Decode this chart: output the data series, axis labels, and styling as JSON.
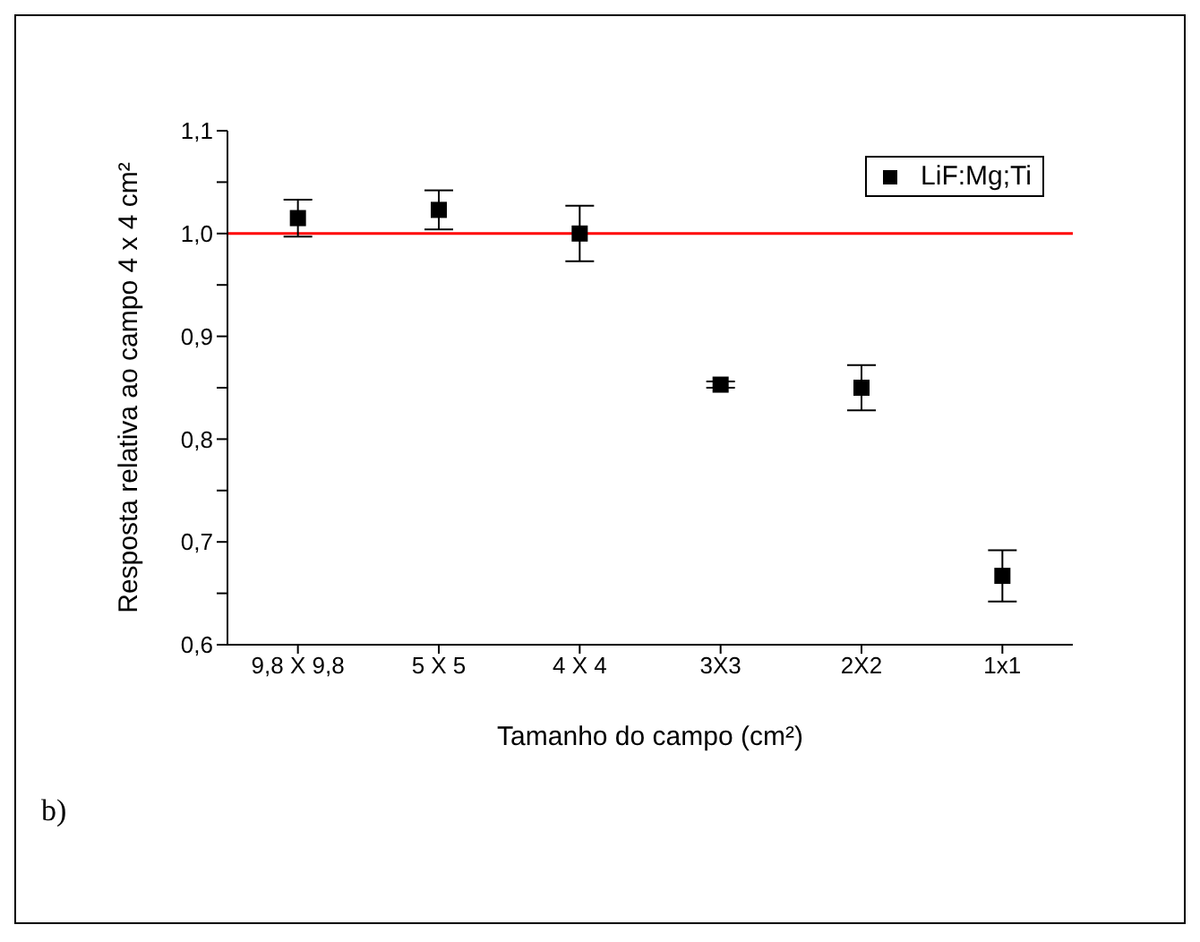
{
  "chart_data": {
    "type": "scatter",
    "xlabel": "Tamanho do campo (cm²)",
    "ylabel": "Resposta relativa ao campo 4 x 4 cm²",
    "categories": [
      "9,8 X 9,8",
      "5 X 5",
      "4 X 4",
      "3X3",
      "2X2",
      "1x1"
    ],
    "series": [
      {
        "name": "LiF:Mg;Ti",
        "color": "#000000",
        "values": [
          1.015,
          1.023,
          1.0,
          0.853,
          0.85,
          0.667
        ],
        "errors": [
          0.018,
          0.019,
          0.027,
          0.003,
          0.022,
          0.025
        ]
      }
    ],
    "ylim": [
      0.6,
      1.1
    ],
    "yticks": [
      {
        "value": 0.6,
        "label": "0,6"
      },
      {
        "value": 0.65,
        "label": null
      },
      {
        "value": 0.7,
        "label": "0,7"
      },
      {
        "value": 0.75,
        "label": null
      },
      {
        "value": 0.8,
        "label": "0,8"
      },
      {
        "value": 0.85,
        "label": null
      },
      {
        "value": 0.9,
        "label": "0,9"
      },
      {
        "value": 0.95,
        "label": null
      },
      {
        "value": 1.0,
        "label": "1,0"
      },
      {
        "value": 1.05,
        "label": null
      },
      {
        "value": 1.1,
        "label": "1,1"
      }
    ],
    "ref_lines": [
      {
        "axis": "y",
        "value": 1.0,
        "color": "#ff0000"
      }
    ],
    "annotations": [
      "b)"
    ],
    "legend": "top right",
    "marker": "square",
    "grid": false
  }
}
